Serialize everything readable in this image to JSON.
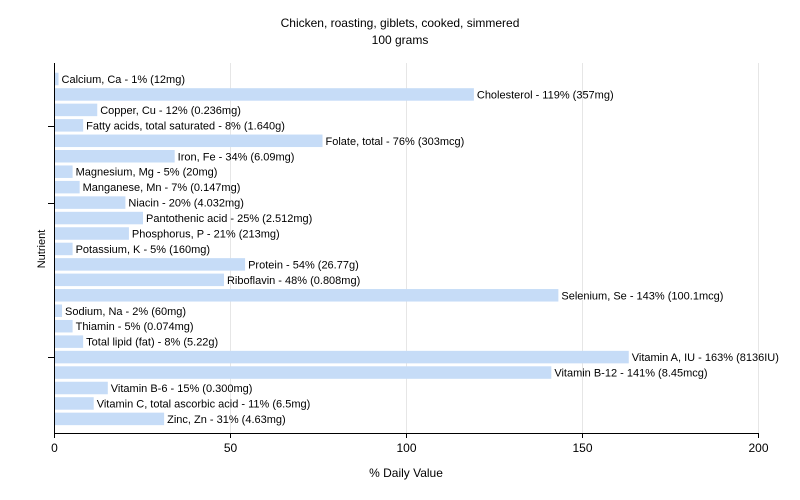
{
  "chart_data": {
    "type": "bar",
    "orientation": "horizontal",
    "title": "Chicken, roasting, giblets, cooked, simmered",
    "subtitle": "100 grams",
    "xlabel": "% Daily Value",
    "ylabel": "Nutrient",
    "xlim": [
      0,
      200
    ],
    "xticks": [
      "0",
      "50",
      "100",
      "150",
      "200"
    ],
    "grid": true,
    "bar_color": "#c6dcf7",
    "grid_color": "#e6e6e6",
    "categories": [
      "Calcium, Ca",
      "Cholesterol",
      "Copper, Cu",
      "Fatty acids, total saturated",
      "Folate, total",
      "Iron, Fe",
      "Magnesium, Mg",
      "Manganese, Mn",
      "Niacin",
      "Pantothenic acid",
      "Phosphorus, P",
      "Potassium, K",
      "Protein",
      "Riboflavin",
      "Selenium, Se",
      "Sodium, Na",
      "Thiamin",
      "Total lipid (fat)",
      "Vitamin A, IU",
      "Vitamin B-12",
      "Vitamin B-6",
      "Vitamin C, total ascorbic acid",
      "Zinc, Zn"
    ],
    "values": [
      1,
      119,
      12,
      8,
      76,
      34,
      5,
      7,
      20,
      25,
      21,
      5,
      54,
      48,
      143,
      2,
      5,
      8,
      163,
      141,
      15,
      11,
      31
    ],
    "labels": [
      "Calcium, Ca - 1% (12mg)",
      "Cholesterol - 119% (357mg)",
      "Copper, Cu - 12% (0.236mg)",
      "Fatty acids, total saturated - 8% (1.640g)",
      "Folate, total - 76% (303mcg)",
      "Iron, Fe - 34% (6.09mg)",
      "Magnesium, Mg - 5% (20mg)",
      "Manganese, Mn - 7% (0.147mg)",
      "Niacin - 20% (4.032mg)",
      "Pantothenic acid - 25% (2.512mg)",
      "Phosphorus, P - 21% (213mg)",
      "Potassium, K - 5% (160mg)",
      "Protein - 54% (26.77g)",
      "Riboflavin - 48% (0.808mg)",
      "Selenium, Se - 143% (100.1mcg)",
      "Sodium, Na - 2% (60mg)",
      "Thiamin - 5% (0.074mg)",
      "Total lipid (fat) - 8% (5.22g)",
      "Vitamin A, IU - 163% (8136IU)",
      "Vitamin B-12 - 141% (8.45mcg)",
      "Vitamin B-6 - 15% (0.300mg)",
      "Vitamin C, total ascorbic acid - 11% (6.5mg)",
      "Zinc, Zn - 31% (4.63mg)"
    ]
  }
}
